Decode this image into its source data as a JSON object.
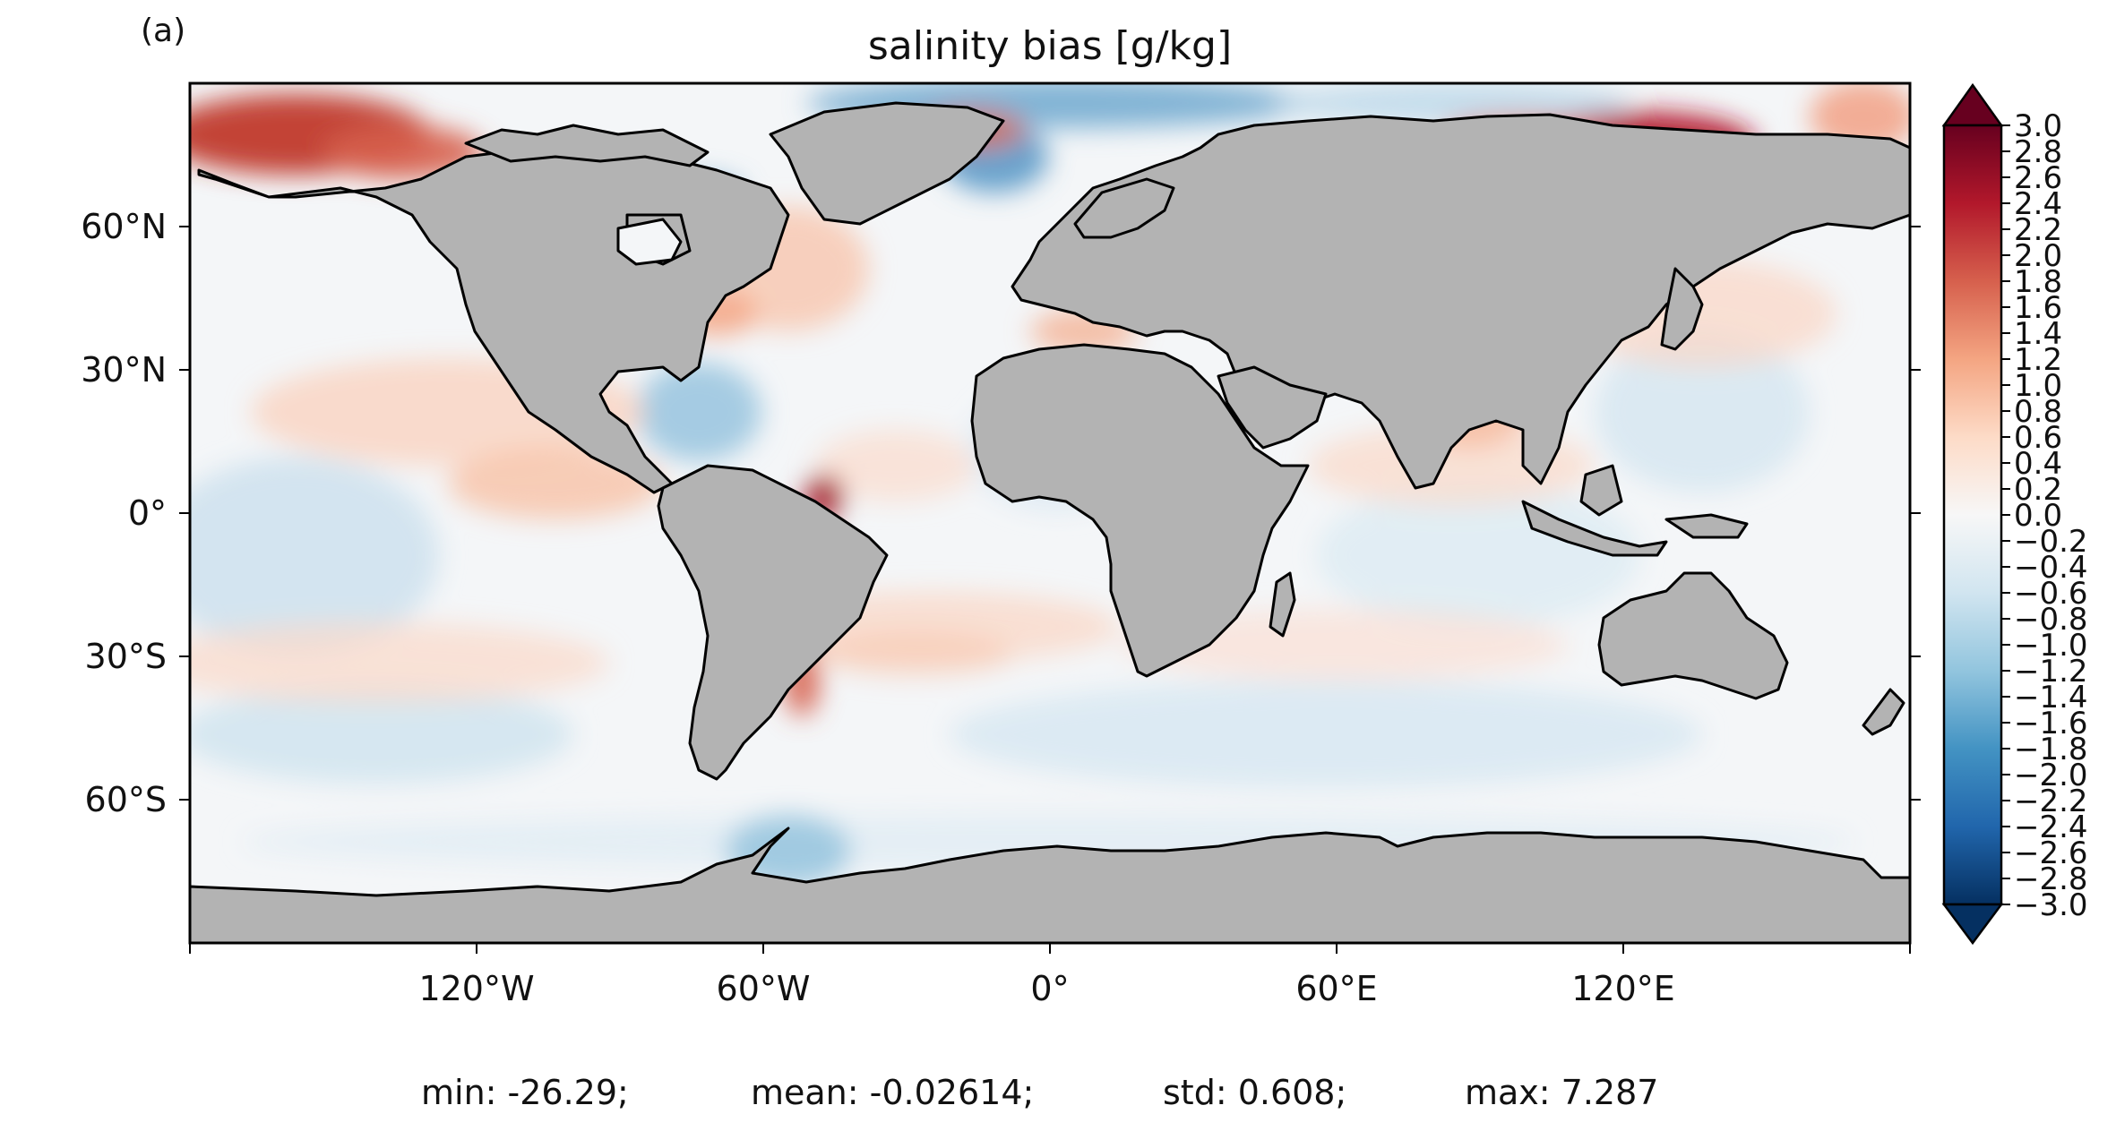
{
  "panel_label": "(a)",
  "title": "salinity bias [g/kg]",
  "map": {
    "projection": "PlateCarree",
    "lon_range": [
      -180,
      180
    ],
    "lat_range": [
      -90,
      90
    ],
    "land_color": "#b3b3b3",
    "coastline_color": "#000000",
    "x_ticks": [
      {
        "lon": -120,
        "label": "120°W"
      },
      {
        "lon": -60,
        "label": "60°W"
      },
      {
        "lon": 0,
        "label": "0°"
      },
      {
        "lon": 60,
        "label": "60°E"
      },
      {
        "lon": 120,
        "label": "120°E"
      }
    ],
    "y_ticks": [
      {
        "lat": 60,
        "label": "60°N"
      },
      {
        "lat": 30,
        "label": "30°N"
      },
      {
        "lat": 0,
        "label": "0°"
      },
      {
        "lat": -30,
        "label": "30°S"
      },
      {
        "lat": -60,
        "label": "60°S"
      }
    ]
  },
  "colorbar": {
    "colormap": "RdBu_r",
    "vmin": -3.0,
    "vmax": 3.0,
    "extend": "both",
    "orientation": "vertical",
    "low_color": "#053061",
    "high_color": "#67001f",
    "labels": [
      "3.0",
      "2.8",
      "2.6",
      "2.4",
      "2.2",
      "2.0",
      "1.8",
      "1.6",
      "1.4",
      "1.2",
      "1.0",
      "0.8",
      "0.6",
      "0.4",
      "0.2",
      "0.0",
      "−0.2",
      "−0.4",
      "−0.6",
      "−0.8",
      "−1.0",
      "−1.2",
      "−1.4",
      "−1.6",
      "−1.8",
      "−2.0",
      "−2.2",
      "−2.4",
      "−2.6",
      "−2.8",
      "−3.0"
    ]
  },
  "stats": {
    "min": "min: -26.29;",
    "mean": "mean: -0.02614;",
    "std": "std: 0.608;",
    "max": "max: 7.287"
  }
}
